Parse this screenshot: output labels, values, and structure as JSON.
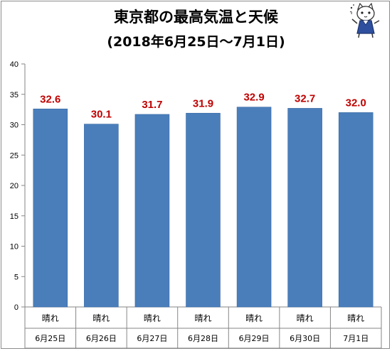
{
  "chart_data": {
    "type": "bar",
    "title": "東京都の最高気温と天候",
    "subtitle": "(2018年6月25日～7月1日)",
    "categories": [
      "6月25日",
      "6月26日",
      "6月27日",
      "6月28日",
      "6月29日",
      "6月30日",
      "7月1日"
    ],
    "weather": [
      "晴れ",
      "晴れ",
      "晴れ",
      "晴れ",
      "晴れ",
      "晴れ",
      "晴れ"
    ],
    "values": [
      32.6,
      30.1,
      31.7,
      31.9,
      32.9,
      32.7,
      32.0
    ],
    "value_labels": [
      "32.6",
      "30.1",
      "31.7",
      "31.9",
      "32.9",
      "32.7",
      "32.0"
    ],
    "ylim": [
      0,
      40
    ],
    "yticks": [
      0,
      5,
      10,
      15,
      20,
      25,
      30,
      35,
      40
    ],
    "grid": false,
    "legend": "none",
    "xlabel": "",
    "ylabel": "",
    "colors": {
      "bar": "#4a7ebb",
      "bar_edge": "#3a6aa3",
      "value_label": "#c00000",
      "axis": "#868686",
      "text": "#000000"
    }
  },
  "mascot": {
    "icon": "cat-mascot-icon"
  }
}
